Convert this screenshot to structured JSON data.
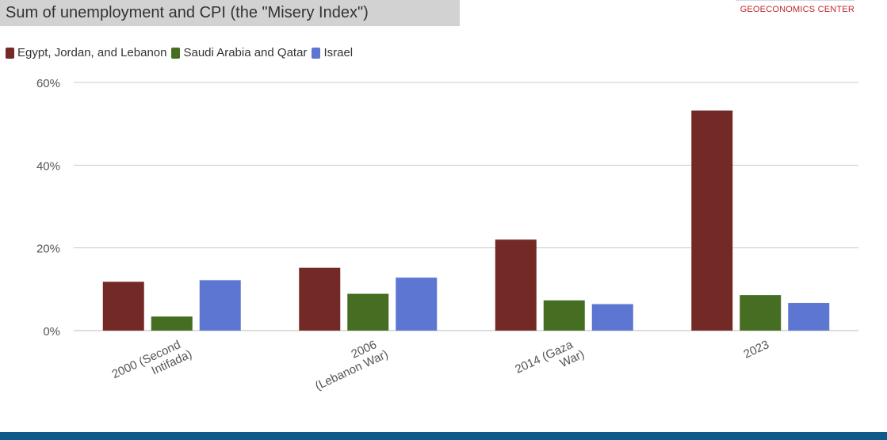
{
  "header": {
    "title": "Sum of unemployment and CPI (the \"Misery Index\")",
    "brand": "GEOECONOMICS CENTER"
  },
  "colors": {
    "egypt": "#732a26",
    "saudi": "#466e23",
    "israel": "#5c76d2",
    "grid": "#cccccc",
    "footer": "#0e5a8a"
  },
  "chart_data": {
    "type": "bar",
    "title": "Sum of unemployment and CPI (the \"Misery Index\")",
    "categories": [
      [
        "2000 (Second",
        "Intifada)"
      ],
      [
        "2006",
        "(Lebanon War)"
      ],
      [
        "2014 (Gaza",
        "War)"
      ],
      [
        "2023"
      ]
    ],
    "series": [
      {
        "name": "Egypt, Jordan, and Lebanon",
        "color": "#732a26",
        "values": [
          11.8,
          15.2,
          22.0,
          53.2
        ]
      },
      {
        "name": "Saudi Arabia and Qatar",
        "color": "#466e23",
        "values": [
          3.4,
          8.9,
          7.3,
          8.6
        ]
      },
      {
        "name": "Israel",
        "color": "#5c76d2",
        "values": [
          12.2,
          12.8,
          6.4,
          6.7
        ]
      }
    ],
    "ylim": [
      0,
      60
    ],
    "yticks": [
      0,
      20,
      40,
      60
    ],
    "ytick_labels": [
      "0%",
      "20%",
      "40%",
      "60%"
    ],
    "ylabel": "",
    "xlabel": "",
    "grid": true,
    "legend_position": "top-left"
  }
}
